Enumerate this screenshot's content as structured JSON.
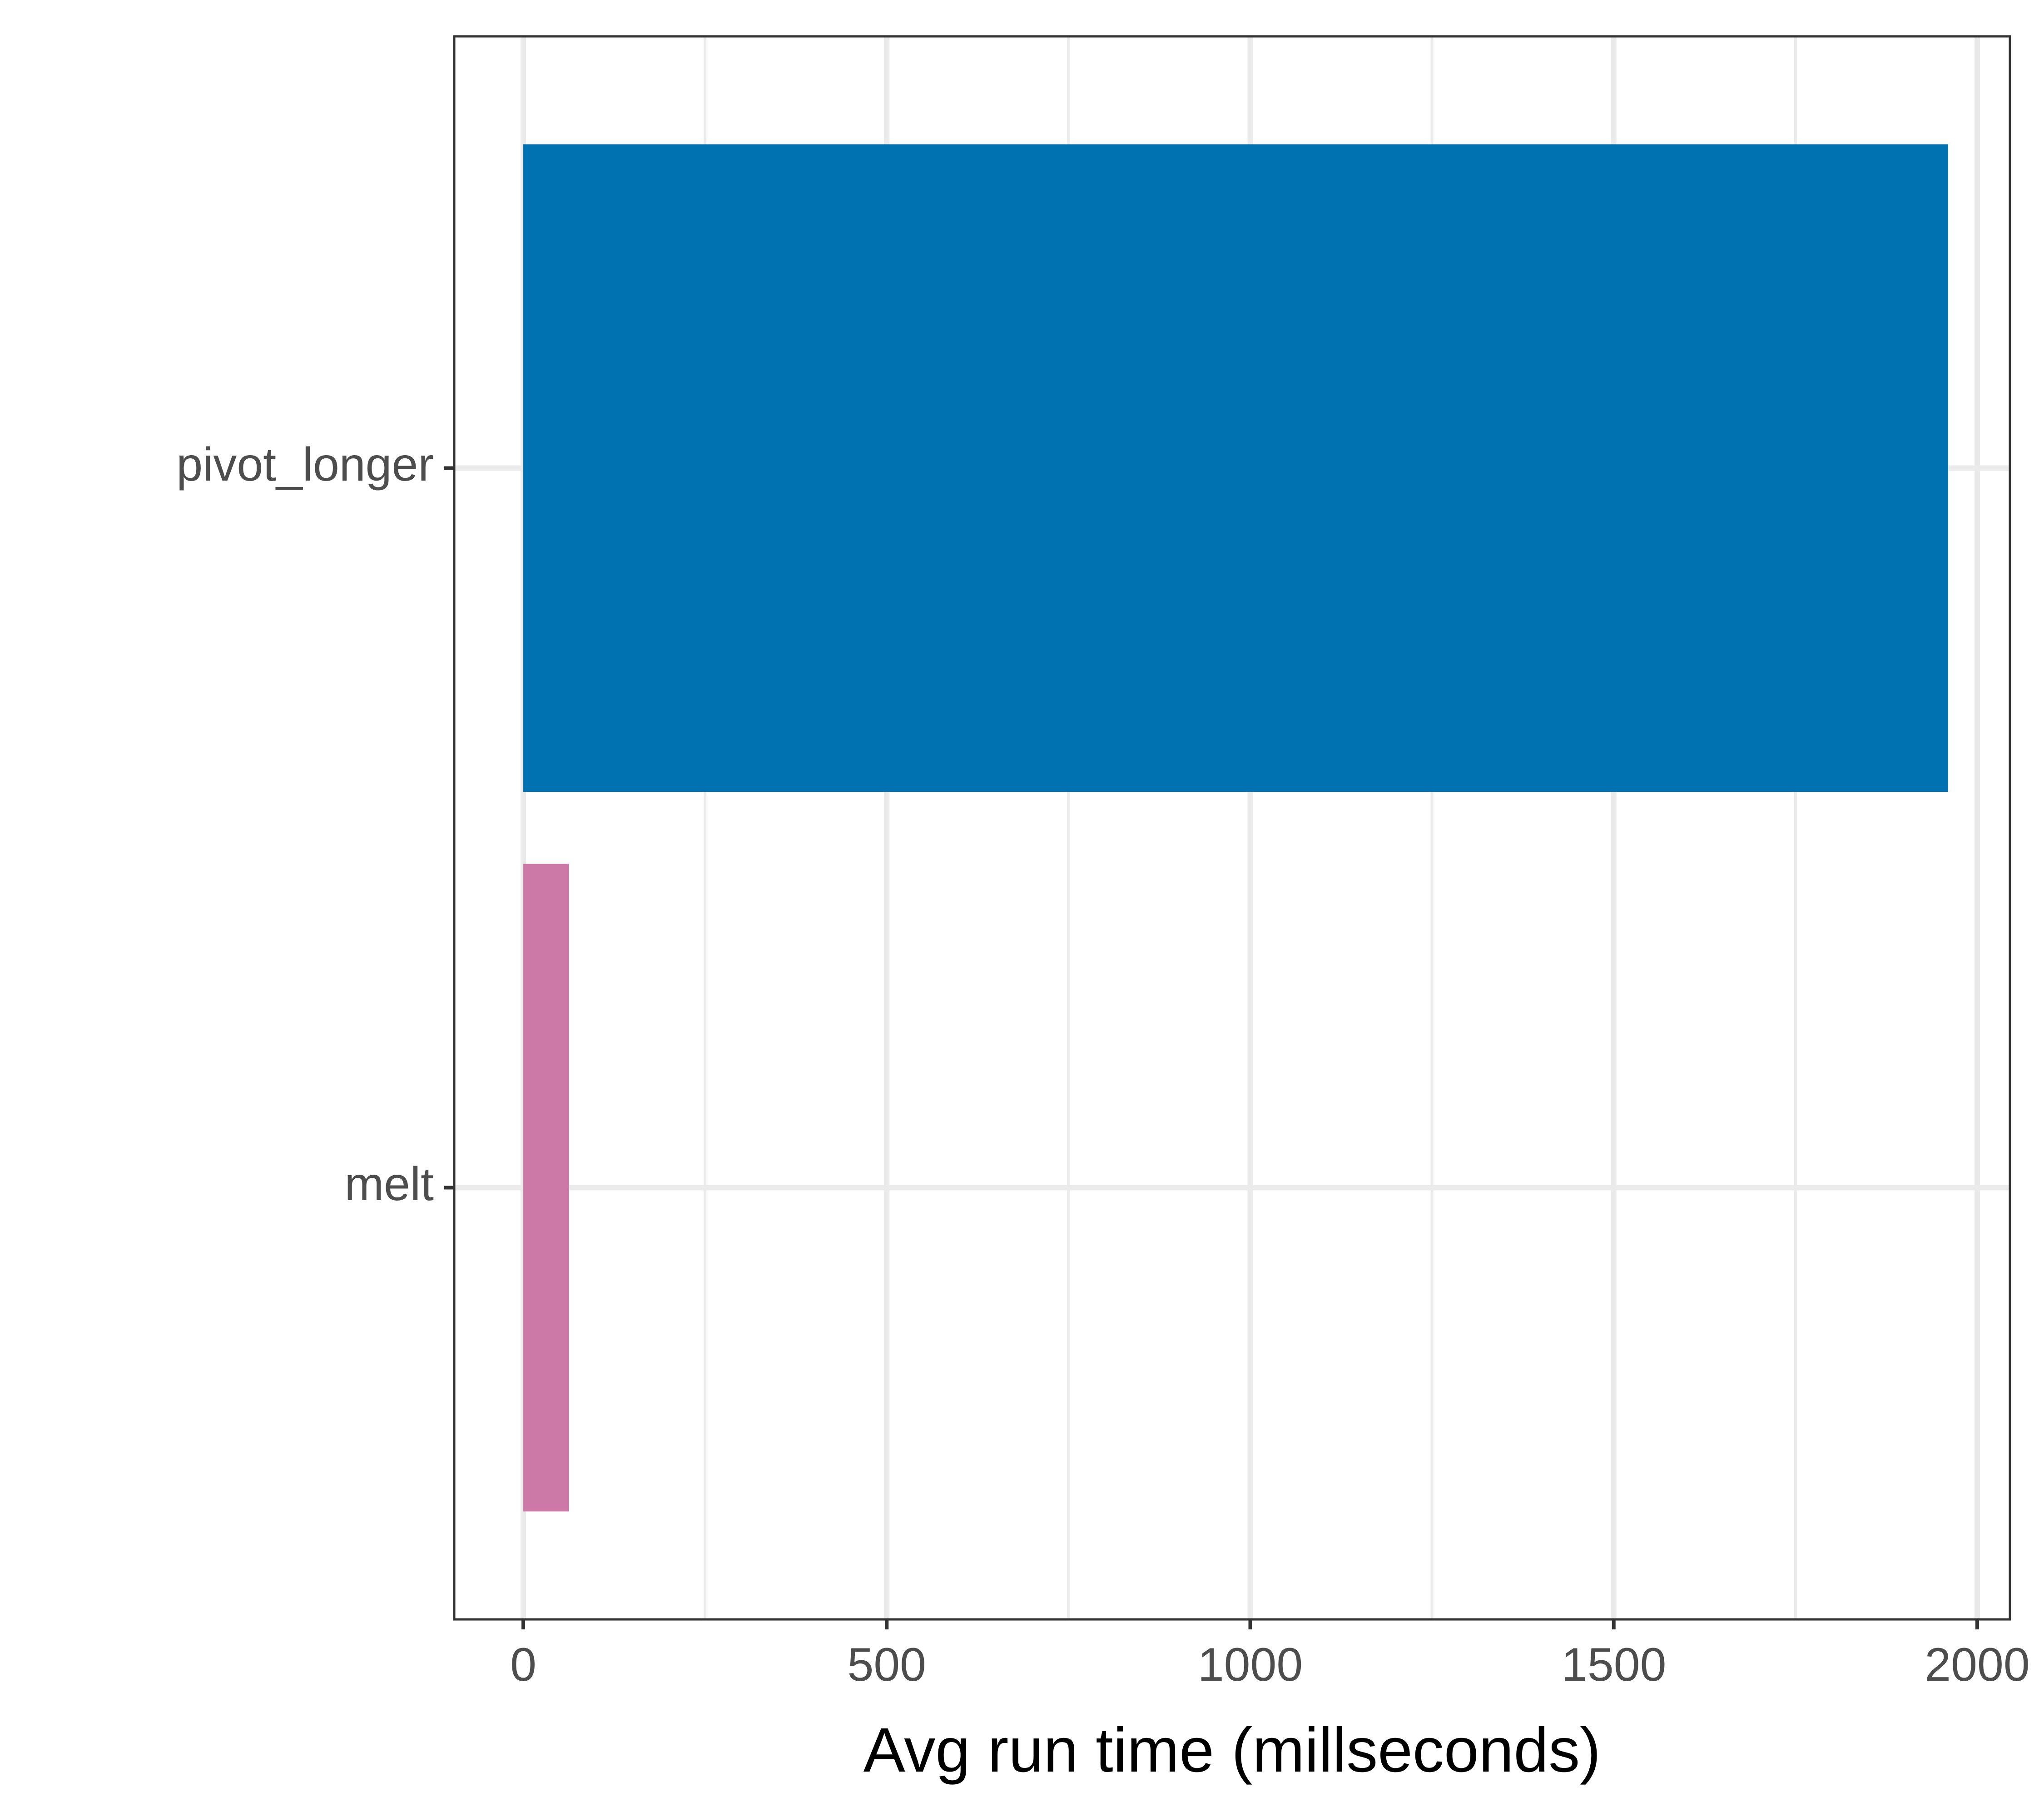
{
  "chart_data": {
    "type": "bar",
    "orientation": "horizontal",
    "title": "",
    "xlabel": "Avg run time (millseconds)",
    "ylabel": "",
    "categories": [
      "pivot_longer",
      "melt"
    ],
    "values": [
      1960,
      63
    ],
    "bar_colors": [
      "#0072B2",
      "#CC79A7"
    ],
    "xlim": [
      -95,
      2045
    ],
    "x_ticks": [
      0,
      500,
      1000,
      1500,
      2000
    ],
    "x_tick_labels": [
      "0",
      "500",
      "1000",
      "1500",
      "2000"
    ],
    "grid": true,
    "legend": "none",
    "colors": {
      "panel_border": "#333333",
      "grid_major": "#ebebeb",
      "grid_minor": "#ebebeb",
      "tick_label": "#4d4d4d",
      "axis_title": "#000000"
    }
  }
}
